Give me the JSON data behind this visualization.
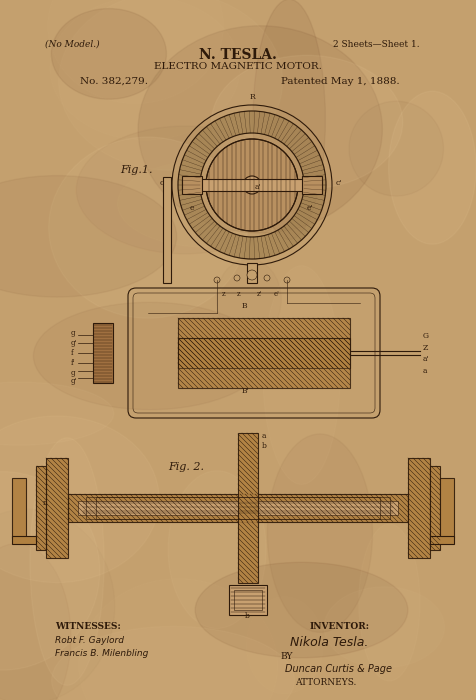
{
  "bg_color": "#c4a06e",
  "ink_color": "#2e1a0a",
  "title_line1": "N. TESLA.",
  "title_line2": "ELECTRO MAGNETIC MOTOR.",
  "title_line3": "No. 382,279.",
  "title_line4": "Patented May 1, 1888.",
  "header_left": "(No Model.)",
  "header_right": "2 Sheets—Sheet 1.",
  "fig1_label": "Fig.1.",
  "fig2_label": "Fig. 2.",
  "witnesses_label": "WITNESSES:",
  "witness1": "Robt F. Gaylord",
  "witness2": "Francis B. Milenbling",
  "inventor_label": "INVENTOR:",
  "inventor_name": "Nikola Tesla.",
  "by_label": "BY",
  "attorney": "Duncan Curtis & Page",
  "attorneys_label": "ATTORNEYS."
}
